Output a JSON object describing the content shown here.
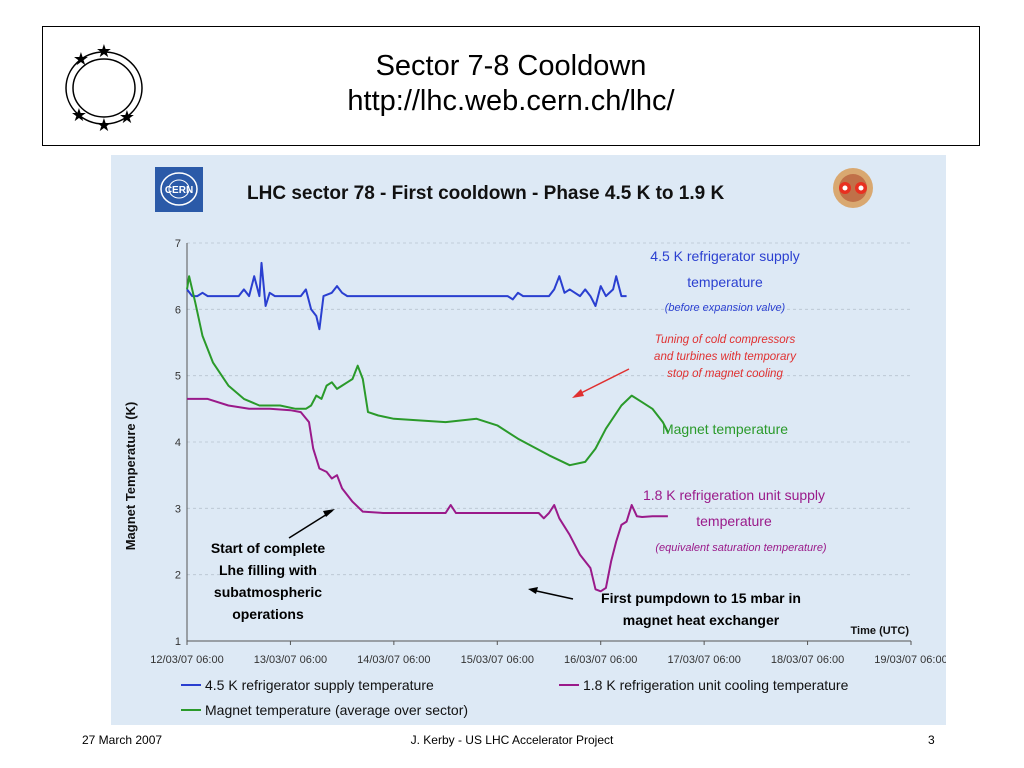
{
  "slide": {
    "title": "Sector 7-8 Cooldown",
    "url": "http://lhc.web.cern.ch/lhc/",
    "footer_date": "27 March 2007",
    "footer_center": "J. Kerby - US LHC Accelerator Project",
    "page_number": "3"
  },
  "chart_data": {
    "type": "line",
    "title": "LHC sector 78 - First cooldown - Phase 4.5 K to 1.9 K",
    "logo_text": "CERN",
    "ylabel": "Magnet Temperature (K)",
    "xlabel": "Time (UTC)",
    "ylim": [
      1,
      7
    ],
    "yticks": [
      "1",
      "2",
      "3",
      "4",
      "5",
      "6",
      "7"
    ],
    "x_range_days": [
      12,
      19
    ],
    "xticks": [
      "12/03/07 06:00",
      "13/03/07 06:00",
      "14/03/07 06:00",
      "15/03/07 06:00",
      "16/03/07 06:00",
      "17/03/07 06:00",
      "18/03/07 06:00",
      "19/03/07 06:00"
    ],
    "grid": true,
    "legend_position": "bottom",
    "series": [
      {
        "name": "4.5 K refrigerator supply temperature",
        "color": "#2a3fd0",
        "points": [
          [
            12.0,
            6.3
          ],
          [
            12.05,
            6.2
          ],
          [
            12.1,
            6.2
          ],
          [
            12.15,
            6.25
          ],
          [
            12.2,
            6.2
          ],
          [
            12.5,
            6.2
          ],
          [
            12.55,
            6.3
          ],
          [
            12.6,
            6.2
          ],
          [
            12.65,
            6.5
          ],
          [
            12.7,
            6.2
          ],
          [
            12.72,
            6.7
          ],
          [
            12.76,
            6.05
          ],
          [
            12.8,
            6.25
          ],
          [
            12.85,
            6.2
          ],
          [
            13.1,
            6.2
          ],
          [
            13.15,
            6.3
          ],
          [
            13.2,
            6.0
          ],
          [
            13.25,
            5.9
          ],
          [
            13.28,
            5.7
          ],
          [
            13.32,
            6.2
          ],
          [
            13.4,
            6.25
          ],
          [
            13.45,
            6.35
          ],
          [
            13.5,
            6.25
          ],
          [
            13.55,
            6.2
          ],
          [
            14.0,
            6.2
          ],
          [
            15.0,
            6.2
          ],
          [
            15.1,
            6.2
          ],
          [
            15.15,
            6.15
          ],
          [
            15.2,
            6.25
          ],
          [
            15.25,
            6.2
          ],
          [
            15.5,
            6.2
          ],
          [
            15.55,
            6.3
          ],
          [
            15.6,
            6.5
          ],
          [
            15.65,
            6.25
          ],
          [
            15.7,
            6.3
          ],
          [
            15.75,
            6.25
          ],
          [
            15.8,
            6.2
          ],
          [
            15.85,
            6.3
          ],
          [
            15.9,
            6.2
          ],
          [
            15.95,
            6.05
          ],
          [
            16.0,
            6.35
          ],
          [
            16.05,
            6.2
          ],
          [
            16.12,
            6.3
          ],
          [
            16.15,
            6.5
          ],
          [
            16.2,
            6.2
          ],
          [
            16.25,
            6.2
          ]
        ]
      },
      {
        "name": "Magnet temperature (average over sector)",
        "color": "#2a9a2a",
        "points": [
          [
            12.0,
            6.3
          ],
          [
            12.02,
            6.5
          ],
          [
            12.08,
            6.1
          ],
          [
            12.15,
            5.6
          ],
          [
            12.25,
            5.2
          ],
          [
            12.4,
            4.85
          ],
          [
            12.55,
            4.65
          ],
          [
            12.7,
            4.55
          ],
          [
            12.9,
            4.55
          ],
          [
            13.05,
            4.5
          ],
          [
            13.15,
            4.5
          ],
          [
            13.2,
            4.55
          ],
          [
            13.25,
            4.7
          ],
          [
            13.3,
            4.65
          ],
          [
            13.35,
            4.85
          ],
          [
            13.4,
            4.9
          ],
          [
            13.45,
            4.8
          ],
          [
            13.5,
            4.85
          ],
          [
            13.55,
            4.9
          ],
          [
            13.6,
            4.95
          ],
          [
            13.65,
            5.15
          ],
          [
            13.7,
            4.95
          ],
          [
            13.75,
            4.45
          ],
          [
            13.85,
            4.4
          ],
          [
            14.0,
            4.35
          ],
          [
            14.5,
            4.3
          ],
          [
            14.8,
            4.35
          ],
          [
            15.0,
            4.25
          ],
          [
            15.2,
            4.05
          ],
          [
            15.5,
            3.8
          ],
          [
            15.7,
            3.65
          ],
          [
            15.85,
            3.7
          ],
          [
            15.95,
            3.9
          ],
          [
            16.05,
            4.2
          ],
          [
            16.2,
            4.55
          ],
          [
            16.3,
            4.7
          ],
          [
            16.4,
            4.6
          ],
          [
            16.5,
            4.5
          ],
          [
            16.6,
            4.3
          ],
          [
            16.65,
            4.15
          ]
        ]
      },
      {
        "name": "1.8 K refrigeration unit cooling temperature",
        "color": "#9a1a8a",
        "points": [
          [
            12.0,
            4.65
          ],
          [
            12.2,
            4.65
          ],
          [
            12.4,
            4.55
          ],
          [
            12.6,
            4.5
          ],
          [
            12.8,
            4.5
          ],
          [
            13.0,
            4.48
          ],
          [
            13.1,
            4.45
          ],
          [
            13.18,
            4.3
          ],
          [
            13.22,
            3.9
          ],
          [
            13.28,
            3.6
          ],
          [
            13.35,
            3.55
          ],
          [
            13.4,
            3.45
          ],
          [
            13.45,
            3.5
          ],
          [
            13.5,
            3.3
          ],
          [
            13.6,
            3.1
          ],
          [
            13.7,
            2.95
          ],
          [
            13.9,
            2.93
          ],
          [
            14.0,
            2.93
          ],
          [
            14.5,
            2.93
          ],
          [
            14.55,
            3.05
          ],
          [
            14.6,
            2.93
          ],
          [
            15.0,
            2.93
          ],
          [
            15.4,
            2.93
          ],
          [
            15.45,
            2.85
          ],
          [
            15.5,
            2.93
          ],
          [
            15.55,
            3.05
          ],
          [
            15.6,
            2.85
          ],
          [
            15.7,
            2.6
          ],
          [
            15.8,
            2.3
          ],
          [
            15.9,
            2.1
          ],
          [
            15.95,
            1.78
          ],
          [
            16.0,
            1.75
          ],
          [
            16.05,
            1.8
          ],
          [
            16.1,
            2.2
          ],
          [
            16.15,
            2.5
          ],
          [
            16.2,
            2.75
          ],
          [
            16.25,
            2.8
          ],
          [
            16.3,
            3.05
          ],
          [
            16.35,
            2.88
          ],
          [
            16.4,
            2.87
          ],
          [
            16.5,
            2.88
          ],
          [
            16.65,
            2.88
          ]
        ]
      }
    ],
    "annotations": [
      {
        "lines": [
          "4.5 K refrigerator supply",
          "temperature"
        ],
        "sub": "(before expansion valve)",
        "color": "#2a3fd0"
      },
      {
        "lines": [
          "Tuning of cold compressors",
          "and turbines with temporary",
          "stop of magnet cooling"
        ],
        "color": "#e03030"
      },
      {
        "lines": [
          "Magnet temperature"
        ],
        "color": "#2a9a2a"
      },
      {
        "lines": [
          "1.8 K refrigeration unit supply",
          "temperature"
        ],
        "sub": "(equivalent saturation temperature)",
        "color": "#9a1a8a"
      },
      {
        "lines": [
          "Start of complete",
          "Lhe filling with",
          "subatmospheric",
          "operations"
        ],
        "color": "#000000"
      },
      {
        "lines": [
          "First pumpdown to 15 mbar in",
          "magnet heat exchanger"
        ],
        "color": "#000000"
      }
    ]
  }
}
